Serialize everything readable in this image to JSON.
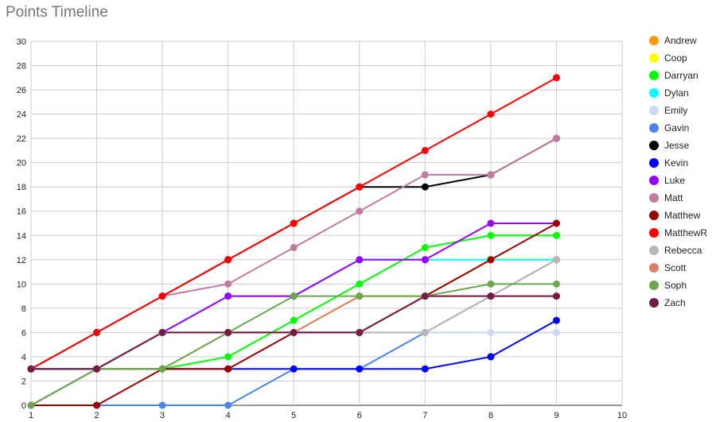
{
  "chart_data": {
    "type": "line",
    "title": "Points Timeline",
    "xlabel": "",
    "ylabel": "",
    "xlim": [
      1,
      10
    ],
    "ylim": [
      0,
      30
    ],
    "x_ticks": [
      "1",
      "2",
      "3",
      "4",
      "5",
      "6",
      "7",
      "8",
      "9",
      "10"
    ],
    "y_ticks": [
      "0",
      "2",
      "4",
      "6",
      "8",
      "10",
      "12",
      "14",
      "16",
      "18",
      "20",
      "22",
      "24",
      "26",
      "28",
      "30"
    ],
    "grid": true,
    "legend_position": "right",
    "x": [
      1,
      2,
      3,
      4,
      5,
      6,
      7,
      8,
      9
    ],
    "series": [
      {
        "name": "Andrew",
        "color": "#ff9900",
        "values": [
          0,
          3,
          6,
          6,
          6,
          9,
          9,
          12,
          12
        ]
      },
      {
        "name": "Coop",
        "color": "#ffff00",
        "values": [
          0,
          3,
          6,
          6,
          6,
          9,
          9,
          12,
          12
        ]
      },
      {
        "name": "Darryan",
        "color": "#00ff00",
        "values": [
          3,
          3,
          3,
          4,
          7,
          10,
          13,
          14,
          14
        ]
      },
      {
        "name": "Dylan",
        "color": "#00ffff",
        "values": [
          0,
          3,
          6,
          9,
          9,
          12,
          12,
          12,
          12
        ]
      },
      {
        "name": "Emily",
        "color": "#c9daf8",
        "values": [
          0,
          3,
          6,
          6,
          6,
          6,
          6,
          6,
          6
        ]
      },
      {
        "name": "Gavin",
        "color": "#4a86e8",
        "values": [
          0,
          0,
          0,
          0,
          3,
          3,
          6,
          9,
          12
        ]
      },
      {
        "name": "Jesse",
        "color": "#000000",
        "values": [
          3,
          6,
          9,
          12,
          15,
          18,
          18,
          19,
          22
        ]
      },
      {
        "name": "Kevin",
        "color": "#0000ff",
        "values": [
          3,
          3,
          3,
          3,
          3,
          3,
          3,
          4,
          7
        ]
      },
      {
        "name": "Luke",
        "color": "#9900ff",
        "values": [
          0,
          3,
          6,
          9,
          9,
          12,
          12,
          15,
          15
        ]
      },
      {
        "name": "Matt",
        "color": "#c27ba0",
        "values": [
          3,
          6,
          9,
          10,
          13,
          16,
          19,
          19,
          22
        ]
      },
      {
        "name": "Matthew",
        "color": "#990000",
        "values": [
          0,
          0,
          3,
          3,
          6,
          6,
          9,
          12,
          15
        ]
      },
      {
        "name": "MatthewR",
        "color": "#ff0000",
        "values": [
          3,
          6,
          9,
          12,
          15,
          18,
          21,
          24,
          27
        ]
      },
      {
        "name": "Rebecca",
        "color": "#b7b7b7",
        "values": [
          0,
          3,
          6,
          6,
          6,
          6,
          6,
          9,
          12
        ]
      },
      {
        "name": "Scott",
        "color": "#dd7e6b",
        "values": [
          0,
          3,
          3,
          6,
          6,
          9,
          9,
          9,
          9
        ]
      },
      {
        "name": "Soph",
        "color": "#6aa84f",
        "values": [
          0,
          3,
          3,
          6,
          9,
          9,
          9,
          10,
          10
        ]
      },
      {
        "name": "Zach",
        "color": "#741b47",
        "values": [
          3,
          3,
          6,
          6,
          6,
          6,
          9,
          9,
          9
        ]
      }
    ]
  }
}
